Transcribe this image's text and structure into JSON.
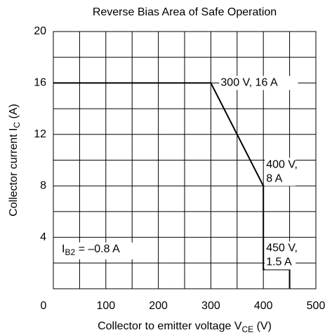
{
  "chart_data": {
    "type": "line",
    "title": "Reverse Bias Area of Safe Operation",
    "x_label": [
      "Collector to emitter voltage  V",
      "CE",
      "  (V)"
    ],
    "y_label": [
      "Collector current  I",
      "C",
      "  (A)"
    ],
    "xlim": [
      0,
      500
    ],
    "ylim": [
      0,
      20
    ],
    "xticks": [
      0,
      100,
      200,
      300,
      400,
      500
    ],
    "yticks": [
      4,
      8,
      12,
      16,
      20
    ],
    "minor_xticks": [
      50,
      150,
      250,
      350,
      450
    ],
    "minor_yticks": [
      2,
      6,
      10,
      14,
      18
    ],
    "grid": true,
    "series": [
      {
        "color": "#000000",
        "x": [
          0,
          300,
          400,
          400,
          450,
          450
        ],
        "values": [
          16,
          16,
          8,
          1.5,
          1.5,
          0
        ]
      }
    ],
    "annotations": [
      {
        "lines": [
          "300 V, 16 A"
        ]
      },
      {
        "lines": [
          "400 V,",
          "8 A"
        ]
      },
      {
        "lines": [
          "450 V,",
          "1.5 A"
        ]
      }
    ],
    "condition": [
      "I",
      "B2",
      " = –0.8 A"
    ]
  }
}
